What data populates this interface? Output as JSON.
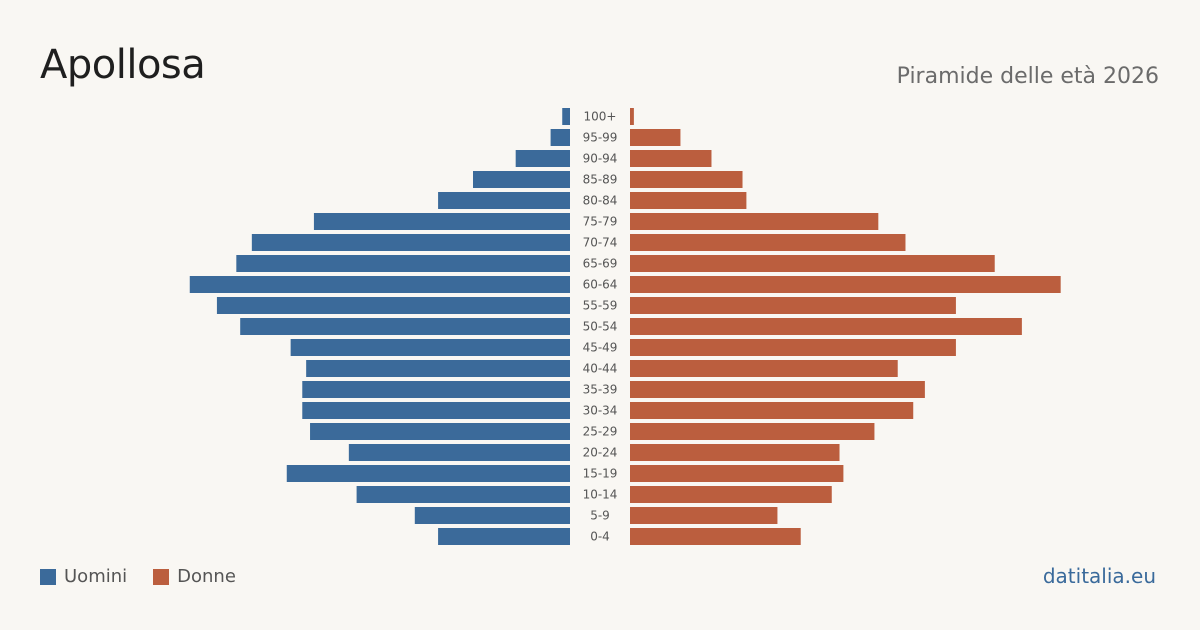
{
  "header": {
    "title": "Apollosa",
    "subtitle": "Piramide delle età 2026"
  },
  "legend": {
    "men_label": "Uomini",
    "women_label": "Donne"
  },
  "footer": {
    "source": "datitalia.eu"
  },
  "colors": {
    "men": "#3b6a9a",
    "women": "#bb5e3e",
    "background": "#f9f7f3",
    "age_label": "#555555"
  },
  "chart_data": {
    "type": "bar",
    "orientation": "horizontal-pyramid",
    "title": "Apollosa",
    "subtitle": "Piramide delle età 2026",
    "categories": [
      "100+",
      "95-99",
      "90-94",
      "85-89",
      "80-84",
      "75-79",
      "70-74",
      "65-69",
      "60-64",
      "55-59",
      "50-54",
      "45-49",
      "40-44",
      "35-39",
      "30-34",
      "25-29",
      "20-24",
      "15-19",
      "10-14",
      "5-9",
      "0-4"
    ],
    "series": [
      {
        "name": "Uomini",
        "color": "#3b6a9a",
        "values": [
          2,
          5,
          14,
          25,
          34,
          66,
          82,
          86,
          98,
          91,
          85,
          72,
          68,
          69,
          69,
          67,
          57,
          73,
          55,
          40,
          34
        ]
      },
      {
        "name": "Donne",
        "color": "#bb5e3e",
        "values": [
          1,
          13,
          21,
          29,
          30,
          64,
          71,
          94,
          111,
          84,
          101,
          84,
          69,
          76,
          73,
          63,
          54,
          55,
          52,
          38,
          44
        ]
      }
    ],
    "grid": false,
    "legend_position": "bottom-left"
  }
}
